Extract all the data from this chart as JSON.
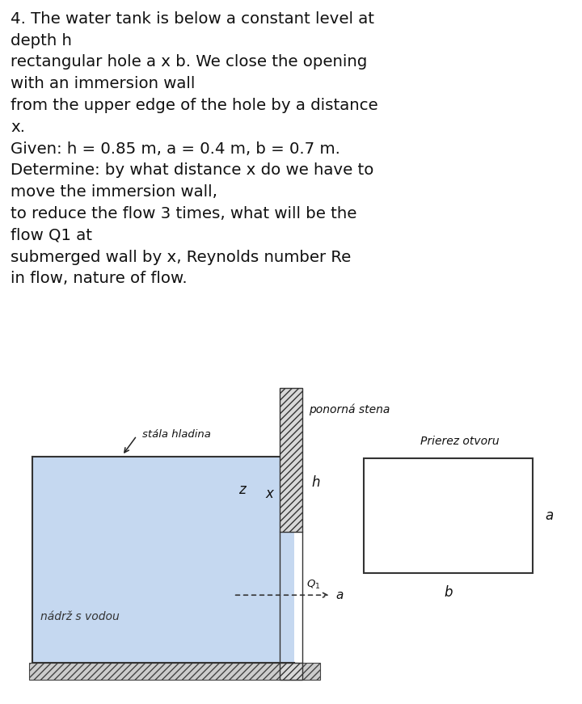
{
  "title_text": "4. The water tank is below a constant level at\ndepth h\nrectangular hole a x b. We close the opening\nwith an immersion wall\nfrom the upper edge of the hole by a distance\nx.\nGiven: h = 0.85 m, a = 0.4 m, b = 0.7 m.\nDetermine: by what distance x do we have to\nmove the immersion wall,\nto reduce the flow 3 times, what will be the\nflow Q1 at\nsubmerged wall by x, Reynolds number Re\nin flow, nature of flow.",
  "bg_color": "#ffffff",
  "water_color": "#c5d8f0",
  "separator_color": "#cc6600",
  "text_color": "#111111",
  "hatch_color": "#666666",
  "label_stala_hladina": "stála hladina",
  "label_ponorna_stena": "ponorná stena",
  "label_nadrz": "nádrž s vodou",
  "label_prierez": "Prierez otvoru",
  "label_h": "h",
  "label_z": "z",
  "label_x": "x",
  "label_a_hole": "a",
  "label_a_cs": "a",
  "label_b": "b",
  "title_fontsize": 14.2,
  "diagram_fontsize": 9.5,
  "label_fontsize": 11.0
}
